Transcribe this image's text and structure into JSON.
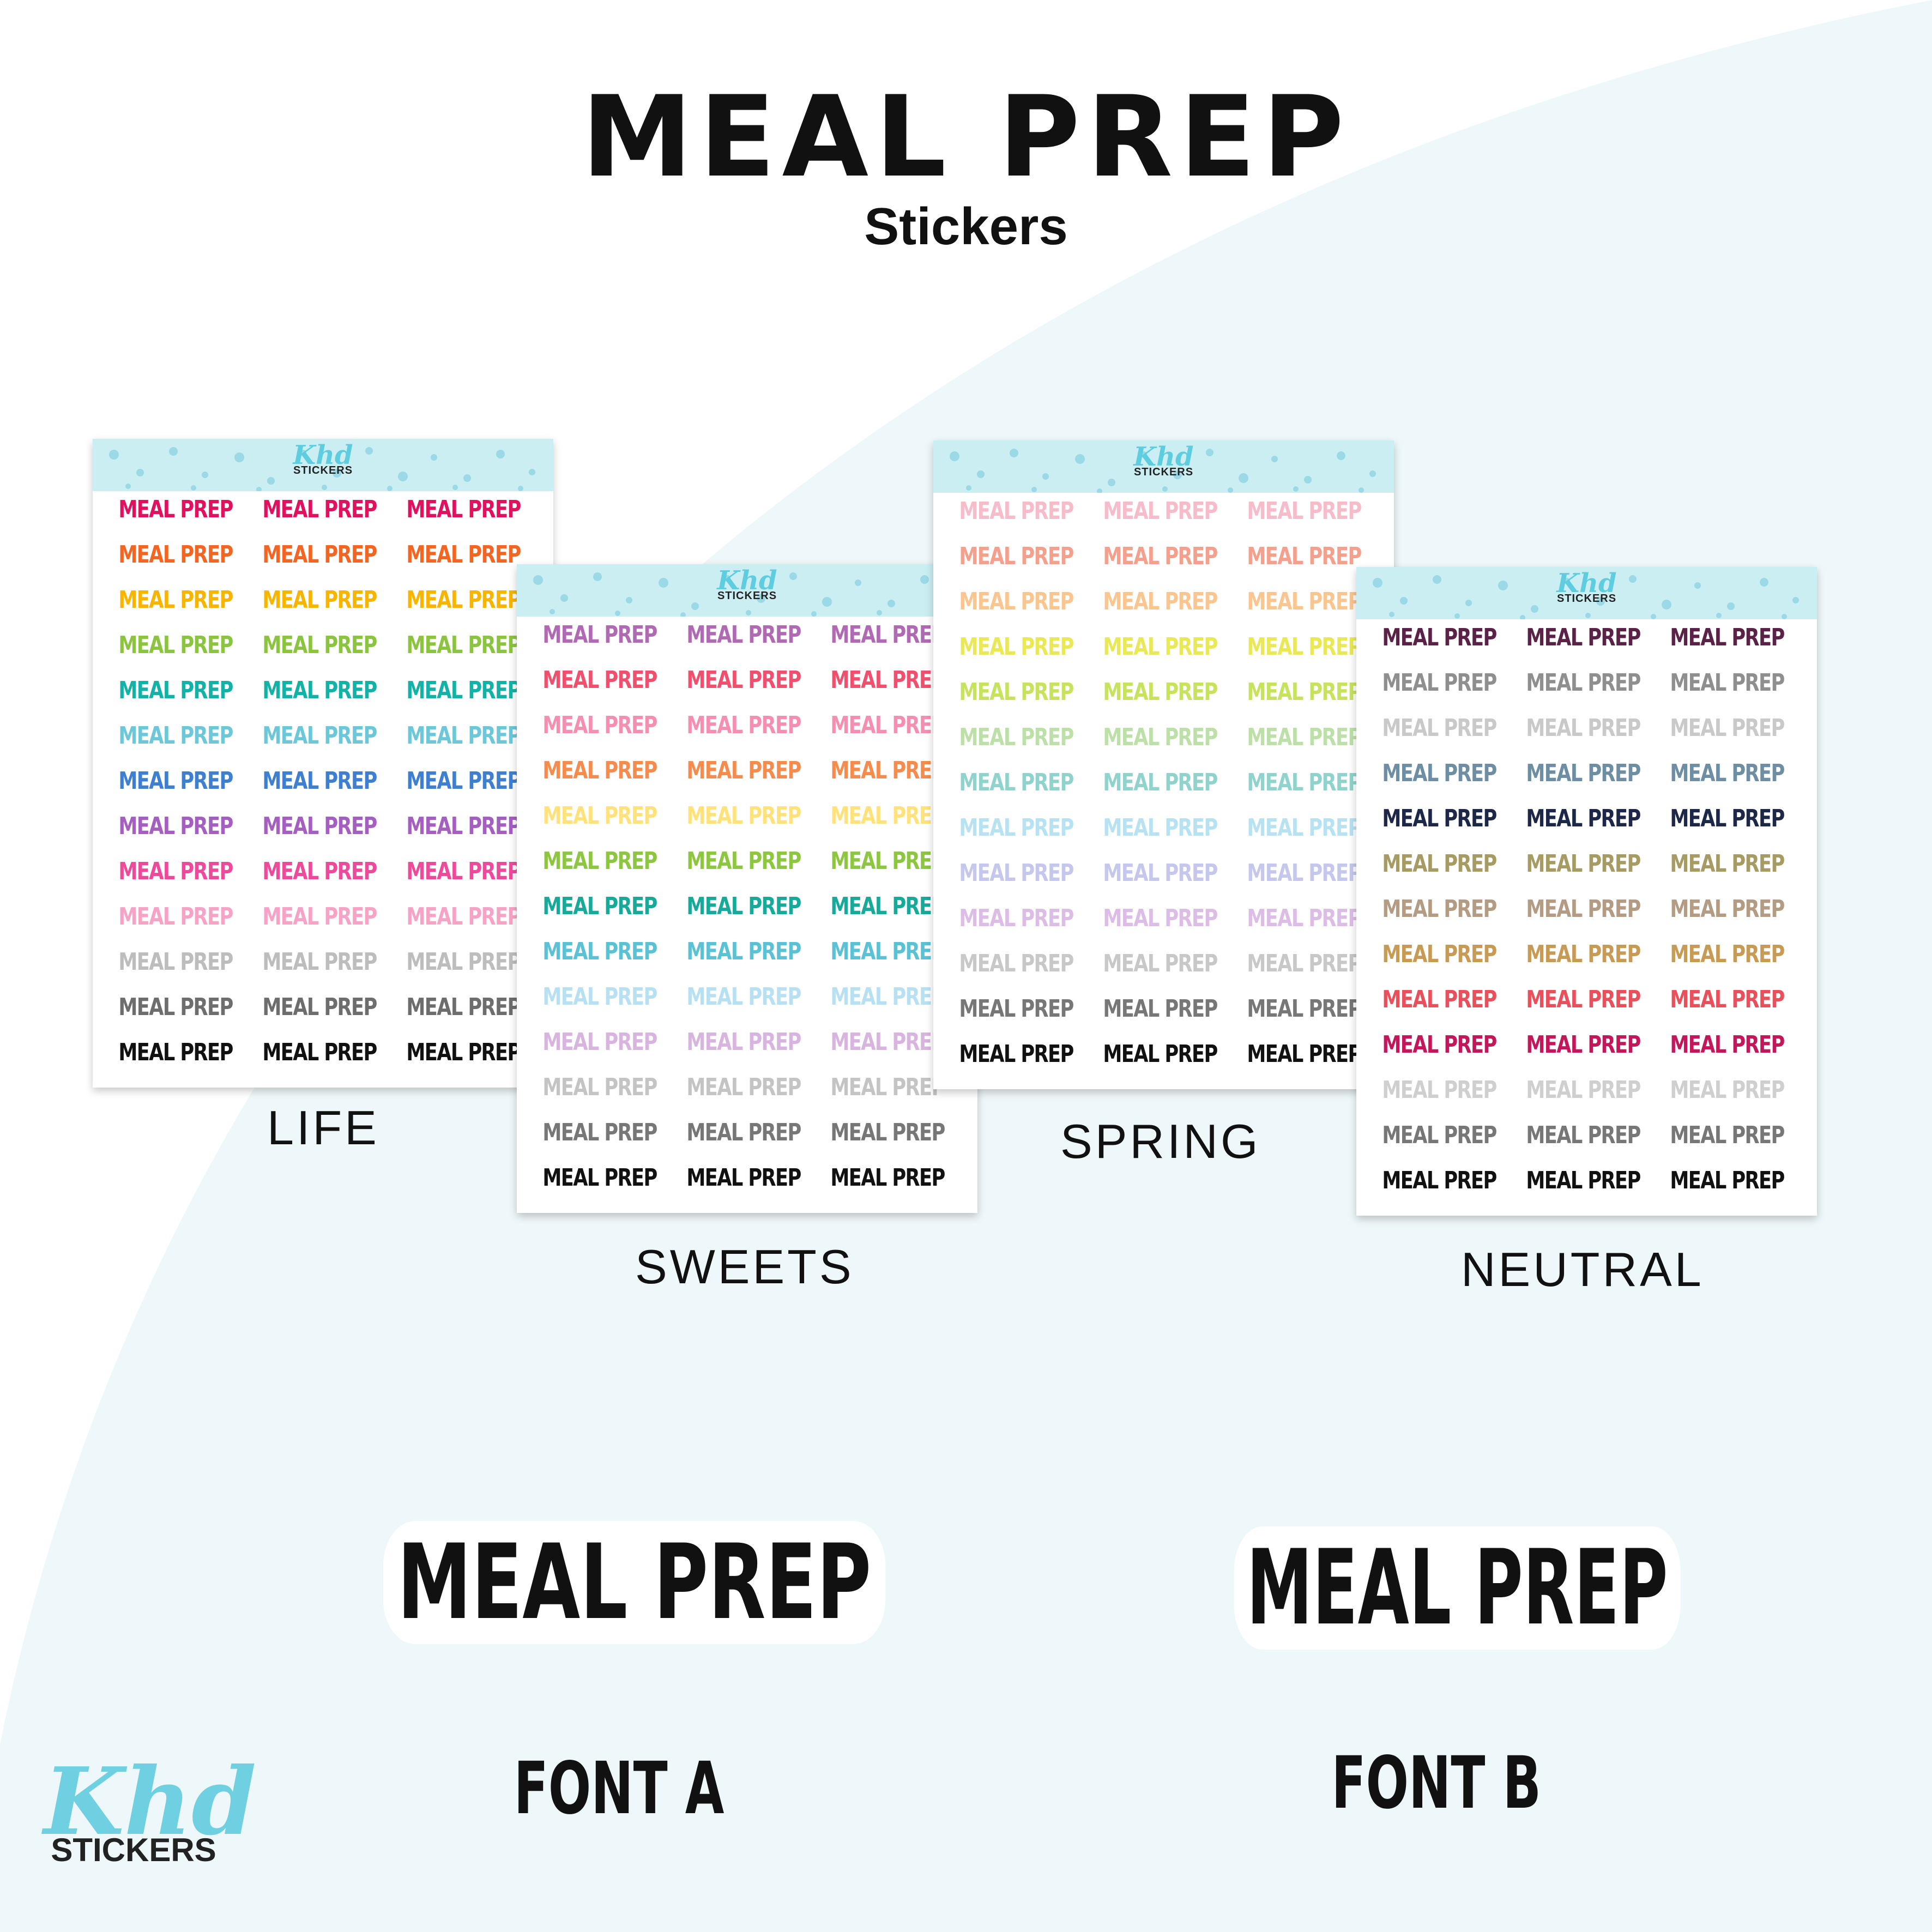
{
  "title": "MEAL PREP",
  "subtitle": "Stickers",
  "sticker_text": "MEAL PREP",
  "brand": {
    "script": "Khd",
    "word": "STICKERS"
  },
  "colors": {
    "background_curve": "#eef7f9",
    "header_band": "#cbeef3",
    "header_dots": "#9bd9e6",
    "brand_accent": "#5ecde0"
  },
  "sheets": [
    {
      "label": "LIFE",
      "columns": 3,
      "row_colors": [
        "#e0115f",
        "#f26522",
        "#f7b500",
        "#8bc43f",
        "#14b2a6",
        "#6cc7d9",
        "#3f7fd1",
        "#a45fc0",
        "#ee4a9b",
        "#f6a3c7",
        "#bdbdbd",
        "#6d6d6d",
        "#111111"
      ]
    },
    {
      "label": "SWEETS",
      "columns": 3,
      "row_colors": [
        "#b06ab3",
        "#f0506e",
        "#f48fb1",
        "#f58b4c",
        "#ffe27a",
        "#8dc63f",
        "#17a99a",
        "#5ac2d4",
        "#b8e0f3",
        "#d7b5de",
        "#c4c4c4",
        "#777777",
        "#111111"
      ]
    },
    {
      "label": "SPRING",
      "columns": 3,
      "row_colors": [
        "#f7bcc9",
        "#f4a08c",
        "#fbc58f",
        "#e9e957",
        "#c7e35e",
        "#bde0a8",
        "#8fd3cc",
        "#b7e2f2",
        "#c5c8ec",
        "#dcbde6",
        "#c8c8c8",
        "#777777",
        "#111111"
      ]
    },
    {
      "label": "NEUTRAL",
      "columns": 3,
      "row_colors": [
        "#5b2247",
        "#8f8f8f",
        "#c9c9c9",
        "#6e8ea3",
        "#1d2748",
        "#a69b62",
        "#b49b83",
        "#c79a55",
        "#e8505b",
        "#c2185b",
        "#cfcfcf",
        "#777777",
        "#111111"
      ]
    }
  ],
  "font_samples": [
    {
      "text": "MEAL PREP",
      "label": "FONT A"
    },
    {
      "text": "MEAL PREP",
      "label": "FONT B"
    }
  ]
}
